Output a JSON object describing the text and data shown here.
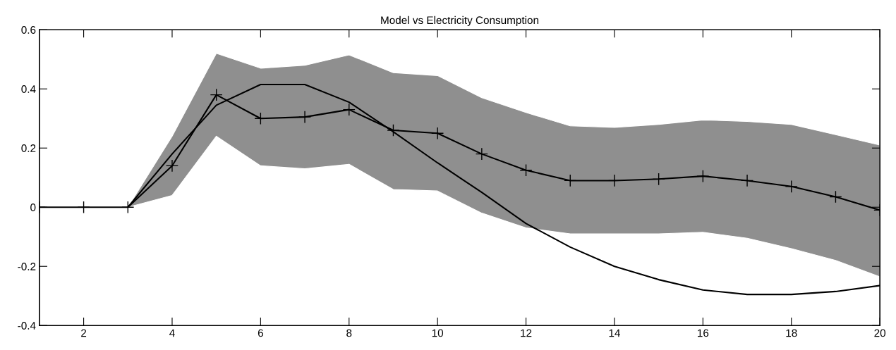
{
  "chart_data": {
    "type": "line",
    "title": "Model vs Electricity Consumption",
    "x": [
      1,
      2,
      3,
      4,
      5,
      6,
      7,
      8,
      9,
      10,
      11,
      12,
      13,
      14,
      15,
      16,
      17,
      18,
      19,
      20
    ],
    "series": [
      {
        "color": "#000000",
        "marker": "cross",
        "values": [
          0,
          0,
          0,
          0.14,
          0.38,
          0.3,
          0.305,
          0.33,
          0.26,
          0.25,
          0.18,
          0.125,
          0.09,
          0.09,
          0.095,
          0.105,
          0.09,
          0.07,
          0.035,
          -0.01
        ],
        "lower": [
          null,
          null,
          0,
          0.04,
          0.24,
          0.14,
          0.13,
          0.145,
          0.06,
          0.055,
          -0.02,
          -0.07,
          -0.09,
          -0.09,
          -0.09,
          -0.085,
          -0.105,
          -0.14,
          -0.18,
          -0.235
        ],
        "upper": [
          null,
          null,
          0,
          0.24,
          0.52,
          0.47,
          0.48,
          0.515,
          0.455,
          0.445,
          0.37,
          0.32,
          0.275,
          0.27,
          0.28,
          0.295,
          0.29,
          0.28,
          0.245,
          0.21
        ]
      },
      {
        "color": "#000000",
        "marker": "none",
        "values": [
          null,
          null,
          0,
          0.18,
          0.345,
          0.415,
          0.415,
          0.355,
          0.255,
          0.15,
          0.05,
          -0.055,
          -0.135,
          -0.2,
          -0.245,
          -0.28,
          -0.295,
          -0.295,
          -0.285,
          -0.265
        ]
      }
    ],
    "xlim": [
      1,
      20
    ],
    "xticks": [
      2,
      4,
      6,
      8,
      10,
      12,
      14,
      16,
      18,
      20
    ],
    "ylim": [
      -0.4,
      0.6
    ],
    "yticks": [
      -0.4,
      -0.2,
      0,
      0.2,
      0.4,
      0.6
    ],
    "grid": false,
    "legend": false
  }
}
